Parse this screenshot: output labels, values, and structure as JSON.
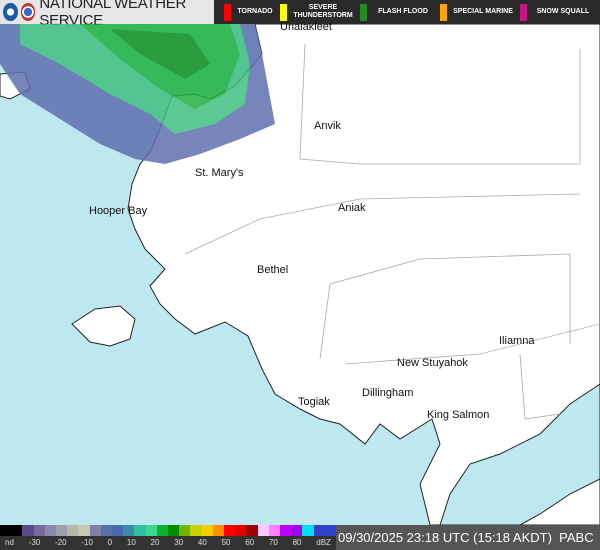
{
  "header": {
    "title": "NATIONAL WEATHER SERVICE",
    "logos": [
      "noaa-logo",
      "nws-logo"
    ]
  },
  "warnings": [
    {
      "label": "TORNADO",
      "color": "#ff0000"
    },
    {
      "label": "SEVERE THUNDERSTORM",
      "color": "#ffff00"
    },
    {
      "label": "FLASH FLOOD",
      "color": "#228b22"
    },
    {
      "label": "SPECIAL MARINE",
      "color": "#ffa500"
    },
    {
      "label": "SNOW SQUALL",
      "color": "#c71585"
    }
  ],
  "cities": [
    "Unalakleet",
    "Anvik",
    "St. Mary's",
    "Hooper Bay",
    "Aniak",
    "Bethel",
    "New Stuyahok",
    "Iliamna",
    "Dillingham",
    "Togiak",
    "King Salmon"
  ],
  "legend": {
    "ticks": [
      "nd",
      "-30",
      "-20",
      "-10",
      "0",
      "10",
      "20",
      "30",
      "40",
      "50",
      "60",
      "70",
      "80",
      "dBZ"
    ],
    "colors": [
      "#000",
      "#000",
      "#5a4a8a",
      "#7a6aa0",
      "#8a8aa8",
      "#a0a0a8",
      "#b8b8a8",
      "#c8c8b0",
      "#8080a8",
      "#5870a8",
      "#4868b0",
      "#3a8ab0",
      "#30c0a0",
      "#40d890",
      "#10b030",
      "#008c00",
      "#70b800",
      "#c8d000",
      "#f0d000",
      "#ff9000",
      "#ff0000",
      "#e00000",
      "#a00000",
      "#ffc8ff",
      "#ff80ff",
      "#c000ff",
      "#a000e8",
      "#00e0f0",
      "#3040c8",
      "#3040c8"
    ]
  },
  "timestamp": "09/30/2025 23:18 UTC (15:18 AKDT)",
  "station": "PABC"
}
